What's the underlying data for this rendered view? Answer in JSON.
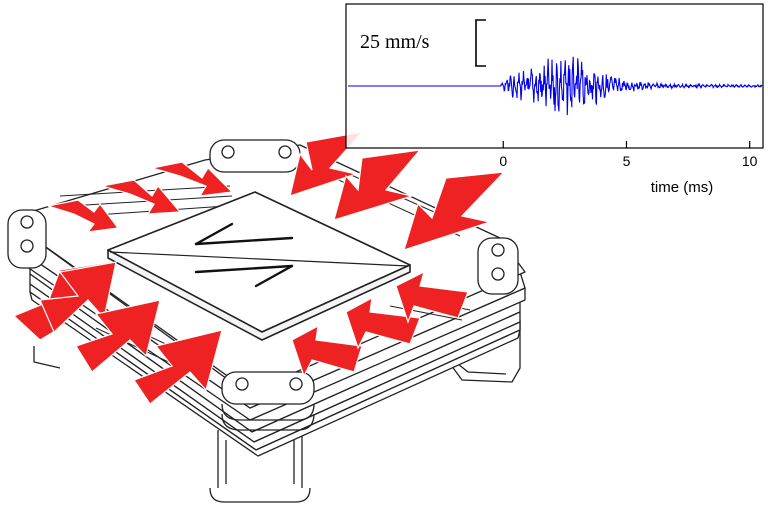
{
  "figure": {
    "inset": {
      "scale_label": "25 mm/s",
      "x_label": "time (ms)",
      "x_ticks": [
        {
          "value": 0,
          "label": "0"
        },
        {
          "value": 5,
          "label": "5"
        },
        {
          "value": 10,
          "label": "10"
        }
      ],
      "xlim": [
        -6.3,
        10.5
      ],
      "signal_onset_ms": 0,
      "signal_peak_ms": 2.5,
      "line_color": "#0000ee"
    },
    "apparatus": {
      "arrow_color": "#ee2222",
      "arrow_count": 14,
      "shear_sense_icon": "opposing-half-arrows-icon"
    }
  }
}
